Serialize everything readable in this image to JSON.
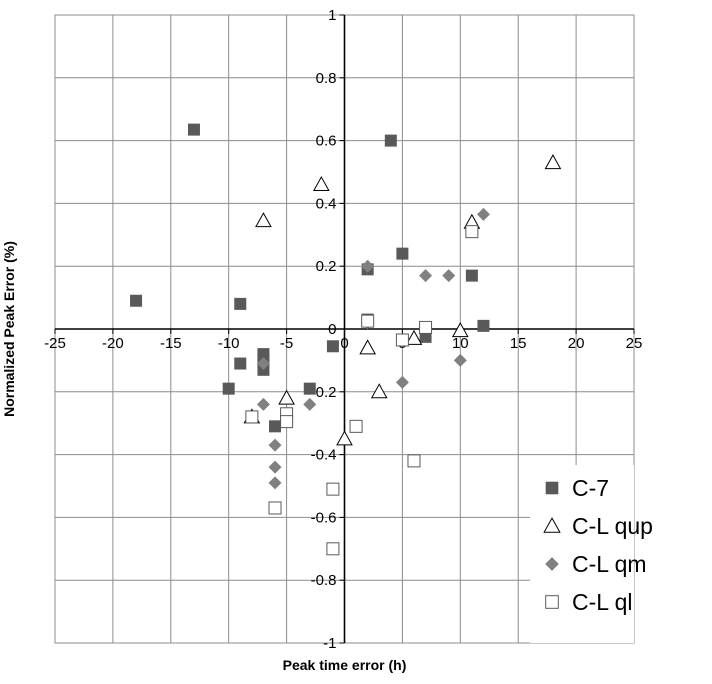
{
  "chart_data": {
    "type": "scatter",
    "title": "",
    "xlabel": "Peak time error (h)",
    "ylabel": "Normalized Peak Error (%)",
    "xlim": [
      -25,
      25
    ],
    "ylim": [
      -1,
      1
    ],
    "x_ticks": [
      -25,
      -20,
      -15,
      -10,
      -5,
      0,
      5,
      10,
      15,
      20,
      25
    ],
    "y_ticks": [
      -1,
      -0.8,
      -0.6,
      -0.4,
      -0.2,
      0,
      0.2,
      0.4,
      0.6,
      0.8,
      1
    ],
    "x_tick_labels": [
      "-25",
      "-20",
      "-15",
      "-10",
      "-5",
      "0",
      "5",
      "10",
      "15",
      "20",
      "25"
    ],
    "y_tick_labels": [
      "-1",
      "-0.8",
      "-0.6",
      "-0.4",
      "-0.2",
      "0",
      "0.2",
      "0.4",
      "0.6",
      "0.8",
      "1"
    ],
    "grid": true,
    "legend_position": "bottom-right",
    "series": [
      {
        "name": "C-7",
        "marker": "filled-square",
        "color": "#595959",
        "points": [
          [
            -18,
            0.09
          ],
          [
            -13,
            0.635
          ],
          [
            -9,
            0.08
          ],
          [
            -9,
            -0.11
          ],
          [
            -10,
            -0.19
          ],
          [
            -7,
            -0.08
          ],
          [
            -7,
            -0.1
          ],
          [
            -7,
            -0.13
          ],
          [
            -6,
            -0.31
          ],
          [
            -3,
            -0.19
          ],
          [
            -1,
            -0.055
          ],
          [
            2,
            0.19
          ],
          [
            2,
            0.03
          ],
          [
            4,
            0.6
          ],
          [
            5,
            0.24
          ],
          [
            7,
            -0.025
          ],
          [
            11,
            0.17
          ],
          [
            12,
            0.01
          ]
        ]
      },
      {
        "name": "C-L qup",
        "marker": "open-triangle",
        "color": "#000000",
        "points": [
          [
            -7,
            0.345
          ],
          [
            -8,
            -0.28
          ],
          [
            -5,
            -0.22
          ],
          [
            -2,
            0.46
          ],
          [
            0,
            -0.35
          ],
          [
            2,
            -0.06
          ],
          [
            3,
            -0.2
          ],
          [
            6,
            -0.03
          ],
          [
            10,
            -0.005
          ],
          [
            11,
            0.34
          ],
          [
            18,
            0.53
          ]
        ]
      },
      {
        "name": "C-L qm",
        "marker": "filled-diamond",
        "color": "#808080",
        "points": [
          [
            -7,
            -0.24
          ],
          [
            -6,
            -0.37
          ],
          [
            -6,
            -0.44
          ],
          [
            -6,
            -0.49
          ],
          [
            -7,
            -0.11
          ],
          [
            -3,
            -0.24
          ],
          [
            2,
            0.2
          ],
          [
            2,
            0.02
          ],
          [
            5,
            -0.17
          ],
          [
            7,
            0.17
          ],
          [
            9,
            0.17
          ],
          [
            10,
            -0.1
          ],
          [
            12,
            0.365
          ]
        ]
      },
      {
        "name": "C-L ql",
        "marker": "open-square",
        "color": "#595959",
        "points": [
          [
            -8,
            -0.28
          ],
          [
            -5,
            -0.27
          ],
          [
            -5,
            -0.295
          ],
          [
            -6,
            -0.57
          ],
          [
            -1,
            -0.51
          ],
          [
            -1,
            -0.7
          ],
          [
            1,
            -0.31
          ],
          [
            2,
            0.025
          ],
          [
            5,
            -0.035
          ],
          [
            6,
            -0.42
          ],
          [
            7,
            0.005
          ],
          [
            11,
            0.31
          ]
        ]
      }
    ]
  }
}
